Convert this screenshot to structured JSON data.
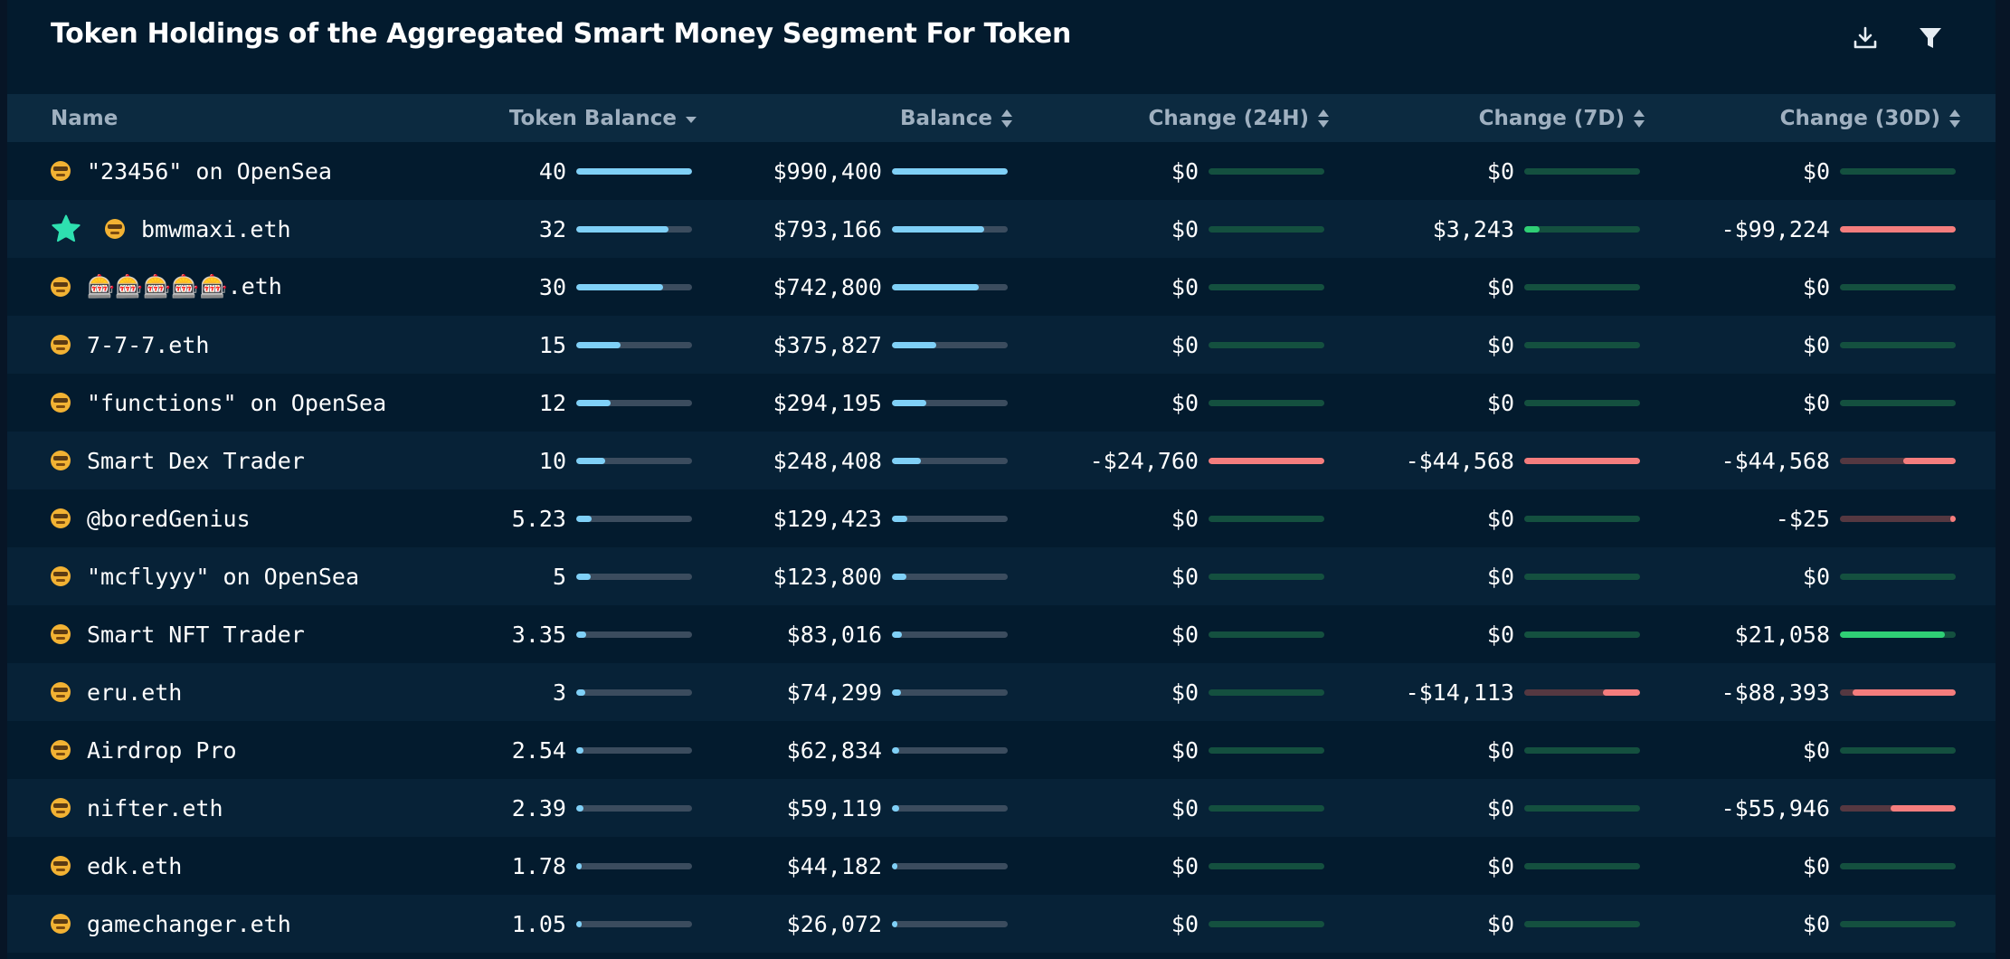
{
  "title": "Token Holdings of the Aggregated Smart Money Segment For Token",
  "toolbar": {
    "download_icon": "download-icon",
    "filter_icon": "filter-icon"
  },
  "columns": {
    "name": "Name",
    "token_balance": "Token Balance",
    "balance": "Balance",
    "change_24h": "Change (24H)",
    "change_7d": "Change (7D)",
    "change_30d": "Change (30D)"
  },
  "colors": {
    "balance_bar": "#7fd0f7",
    "positive_bar": "#2fcf75",
    "negative_bar": "#f47d7d",
    "star": "#2ee0b0"
  },
  "rows": [
    {
      "name": "\"23456\" on OpenSea",
      "starred": false,
      "token_balance": "40",
      "tb_frac": 1.0,
      "balance": "$990,400",
      "bal_frac": 1.0,
      "c24": "$0",
      "c24_kind": "zero",
      "c24_frac": 0,
      "c7": "$0",
      "c7_kind": "zero",
      "c7_frac": 0,
      "c30": "$0",
      "c30_kind": "zero",
      "c30_frac": 0
    },
    {
      "name": "bmwmaxi.eth",
      "starred": true,
      "token_balance": "32",
      "tb_frac": 0.8,
      "balance": "$793,166",
      "bal_frac": 0.8,
      "c24": "$0",
      "c24_kind": "zero",
      "c24_frac": 0,
      "c7": "$3,243",
      "c7_kind": "pos",
      "c7_frac": 0.13,
      "c30": "-$99,224",
      "c30_kind": "neg",
      "c30_frac": 1.0
    },
    {
      "name": "🎰🎰🎰🎰🎰.eth",
      "starred": false,
      "token_balance": "30",
      "tb_frac": 0.75,
      "balance": "$742,800",
      "bal_frac": 0.75,
      "c24": "$0",
      "c24_kind": "zero",
      "c24_frac": 0,
      "c7": "$0",
      "c7_kind": "zero",
      "c7_frac": 0,
      "c30": "$0",
      "c30_kind": "zero",
      "c30_frac": 0
    },
    {
      "name": "7-7-7.eth",
      "starred": false,
      "token_balance": "15",
      "tb_frac": 0.38,
      "balance": "$375,827",
      "bal_frac": 0.38,
      "c24": "$0",
      "c24_kind": "zero",
      "c24_frac": 0,
      "c7": "$0",
      "c7_kind": "zero",
      "c7_frac": 0,
      "c30": "$0",
      "c30_kind": "zero",
      "c30_frac": 0
    },
    {
      "name": "\"functions\" on OpenSea",
      "starred": false,
      "token_balance": "12",
      "tb_frac": 0.3,
      "balance": "$294,195",
      "bal_frac": 0.3,
      "c24": "$0",
      "c24_kind": "zero",
      "c24_frac": 0,
      "c7": "$0",
      "c7_kind": "zero",
      "c7_frac": 0,
      "c30": "$0",
      "c30_kind": "zero",
      "c30_frac": 0
    },
    {
      "name": "Smart Dex Trader",
      "starred": false,
      "token_balance": "10",
      "tb_frac": 0.25,
      "balance": "$248,408",
      "bal_frac": 0.25,
      "c24": "-$24,760",
      "c24_kind": "neg",
      "c24_frac": 1.0,
      "c7": "-$44,568",
      "c7_kind": "neg",
      "c7_frac": 1.0,
      "c30": "-$44,568",
      "c30_kind": "neg",
      "c30_frac": 0.45
    },
    {
      "name": "@boredGenius",
      "starred": false,
      "token_balance": "5.23",
      "tb_frac": 0.13,
      "balance": "$129,423",
      "bal_frac": 0.13,
      "c24": "$0",
      "c24_kind": "zero",
      "c24_frac": 0,
      "c7": "$0",
      "c7_kind": "zero",
      "c7_frac": 0,
      "c30": "-$25",
      "c30_kind": "neg",
      "c30_frac": 0.003
    },
    {
      "name": "\"mcflyyy\" on OpenSea",
      "starred": false,
      "token_balance": "5",
      "tb_frac": 0.125,
      "balance": "$123,800",
      "bal_frac": 0.125,
      "c24": "$0",
      "c24_kind": "zero",
      "c24_frac": 0,
      "c7": "$0",
      "c7_kind": "zero",
      "c7_frac": 0,
      "c30": "$0",
      "c30_kind": "zero",
      "c30_frac": 0
    },
    {
      "name": "Smart NFT Trader",
      "starred": false,
      "token_balance": "3.35",
      "tb_frac": 0.084,
      "balance": "$83,016",
      "bal_frac": 0.084,
      "c24": "$0",
      "c24_kind": "zero",
      "c24_frac": 0,
      "c7": "$0",
      "c7_kind": "zero",
      "c7_frac": 0,
      "c30": "$21,058",
      "c30_kind": "pos",
      "c30_frac": 0.91
    },
    {
      "name": "eru.eth",
      "starred": false,
      "token_balance": "3",
      "tb_frac": 0.075,
      "balance": "$74,299",
      "bal_frac": 0.075,
      "c24": "$0",
      "c24_kind": "zero",
      "c24_frac": 0,
      "c7": "-$14,113",
      "c7_kind": "neg",
      "c7_frac": 0.32,
      "c30": "-$88,393",
      "c30_kind": "neg",
      "c30_frac": 0.89
    },
    {
      "name": "Airdrop Pro",
      "starred": false,
      "token_balance": "2.54",
      "tb_frac": 0.064,
      "balance": "$62,834",
      "bal_frac": 0.064,
      "c24": "$0",
      "c24_kind": "zero",
      "c24_frac": 0,
      "c7": "$0",
      "c7_kind": "zero",
      "c7_frac": 0,
      "c30": "$0",
      "c30_kind": "zero",
      "c30_frac": 0
    },
    {
      "name": "nifter.eth",
      "starred": false,
      "token_balance": "2.39",
      "tb_frac": 0.06,
      "balance": "$59,119",
      "bal_frac": 0.06,
      "c24": "$0",
      "c24_kind": "zero",
      "c24_frac": 0,
      "c7": "$0",
      "c7_kind": "zero",
      "c7_frac": 0,
      "c30": "-$55,946",
      "c30_kind": "neg",
      "c30_frac": 0.56
    },
    {
      "name": "edk.eth",
      "starred": false,
      "token_balance": "1.78",
      "tb_frac": 0.045,
      "balance": "$44,182",
      "bal_frac": 0.045,
      "c24": "$0",
      "c24_kind": "zero",
      "c24_frac": 0,
      "c7": "$0",
      "c7_kind": "zero",
      "c7_frac": 0,
      "c30": "$0",
      "c30_kind": "zero",
      "c30_frac": 0
    },
    {
      "name": "gamechanger.eth",
      "starred": false,
      "token_balance": "1.05",
      "tb_frac": 0.026,
      "balance": "$26,072",
      "bal_frac": 0.026,
      "c24": "$0",
      "c24_kind": "zero",
      "c24_frac": 0,
      "c7": "$0",
      "c7_kind": "zero",
      "c7_frac": 0,
      "c30": "$0",
      "c30_kind": "zero",
      "c30_frac": 0
    }
  ]
}
